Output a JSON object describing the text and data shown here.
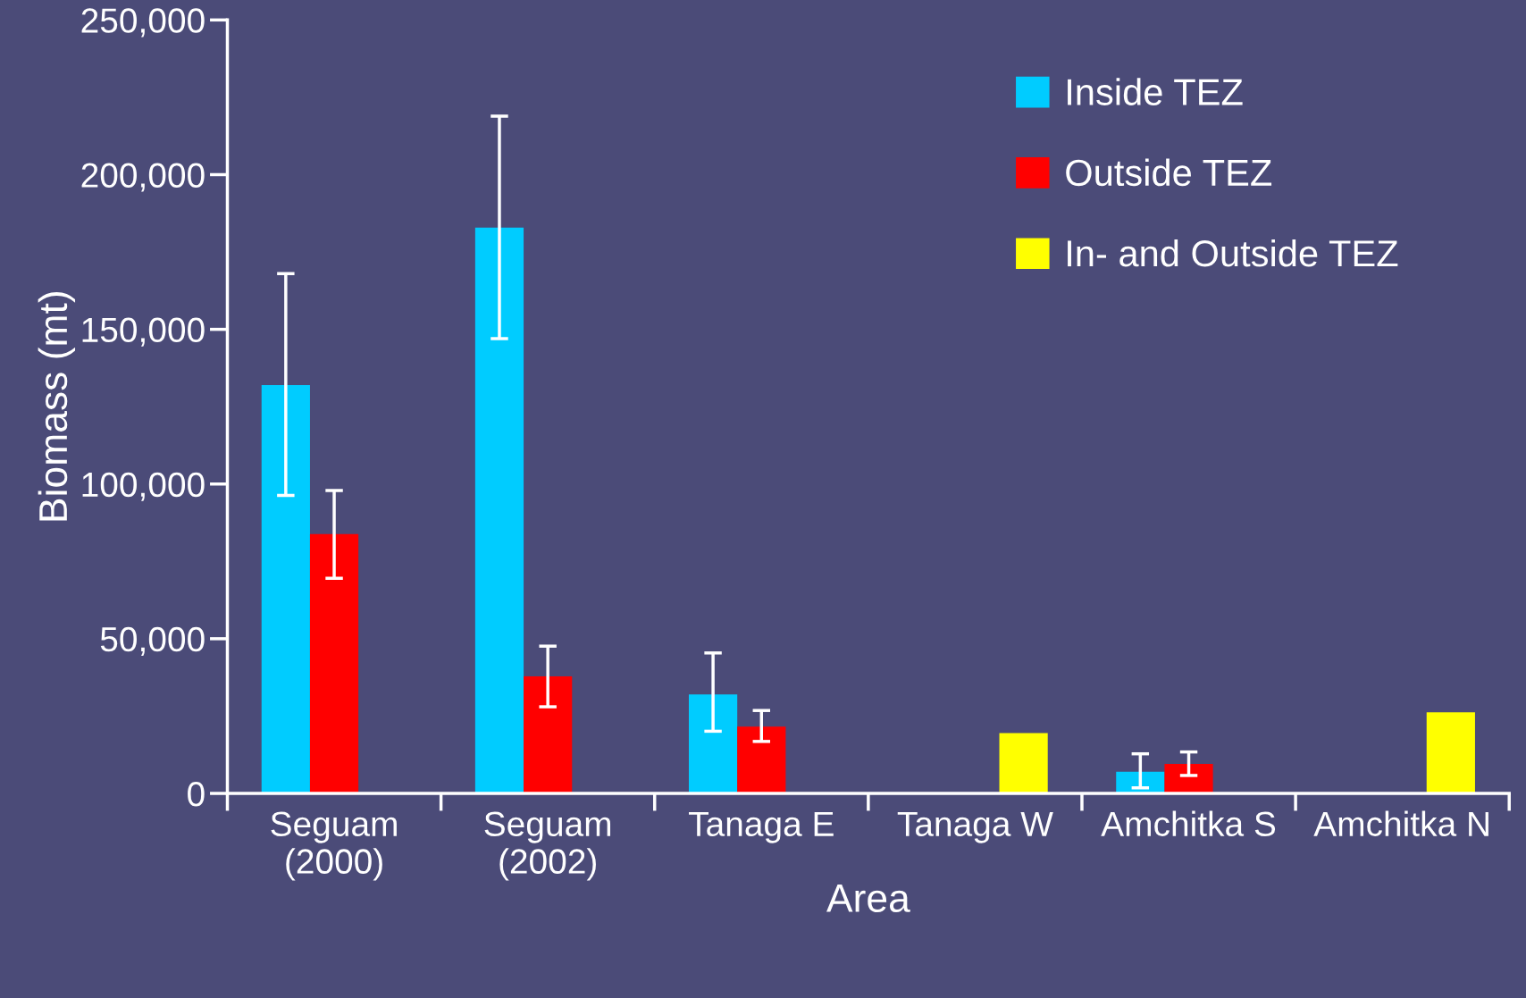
{
  "chart_data": {
    "type": "bar",
    "xlabel": "Area",
    "ylabel": "Biomass (mt)",
    "categories": [
      "Seguam\n(2000)",
      "Seguam\n(2002)",
      "Tanaga E",
      "Tanaga W",
      "Amchitka S",
      "Amchitka N"
    ],
    "series": [
      {
        "name": "Inside TEZ",
        "color": "#00ccff",
        "values": [
          132000,
          182900,
          32000,
          null,
          7000,
          null
        ],
        "errors": [
          [
            96300,
            168000
          ],
          [
            147000,
            218900
          ],
          [
            20100,
            45400
          ],
          null,
          [
            1800,
            12800
          ],
          null
        ]
      },
      {
        "name": "Outside TEZ",
        "color": "#ff0000",
        "values": [
          83800,
          37800,
          21600,
          null,
          9500,
          null
        ],
        "errors": [
          [
            69500,
            97900
          ],
          [
            28000,
            47600
          ],
          [
            16800,
            26800
          ],
          null,
          [
            5800,
            13400
          ],
          null
        ]
      },
      {
        "name": "In- and Outside TEZ",
        "color": "#ffff00",
        "values": [
          null,
          null,
          null,
          19500,
          null,
          26200
        ]
      }
    ],
    "ylim": [
      0,
      250000
    ],
    "yticks": [
      0,
      {
        "value": 50000,
        "label": "50,000"
      },
      {
        "value": 100000,
        "label": "100,000"
      },
      {
        "value": 150000,
        "label": "150,000"
      },
      {
        "value": 200000,
        "label": "200,000"
      },
      {
        "value": 250000,
        "label": "250,000"
      }
    ],
    "grid": false,
    "legend": "top right"
  }
}
